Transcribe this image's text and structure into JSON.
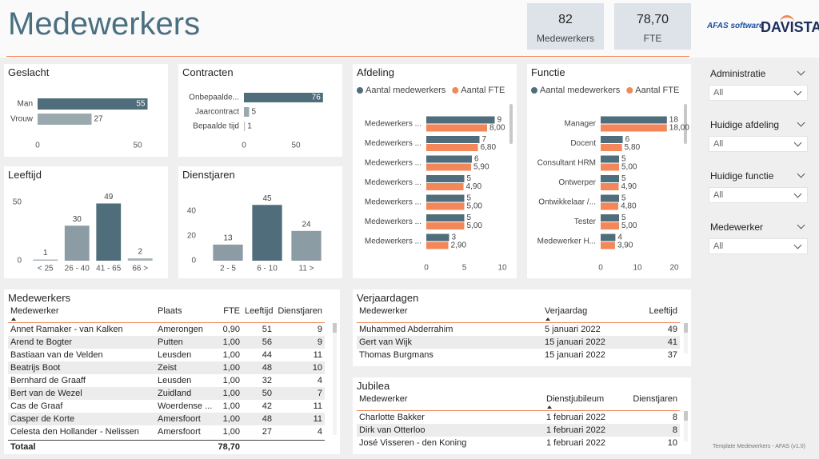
{
  "header": {
    "title": "Medewerkers"
  },
  "kpis": [
    {
      "value": "82",
      "label": "Medewerkers"
    },
    {
      "value": "78,70",
      "label": "FTE"
    }
  ],
  "logos": [
    "AFAS software",
    "DAVISTA"
  ],
  "chart_data": [
    {
      "type": "hbar",
      "title": "Geslacht",
      "categories": [
        "Man",
        "Vrouw"
      ],
      "values": [
        55,
        27
      ],
      "colors": [
        "#4f6d7a",
        "#9aa9ae"
      ],
      "xlim": [
        0,
        60
      ],
      "xticks": [
        0,
        50
      ]
    },
    {
      "type": "hbar",
      "title": "Contracten",
      "categories": [
        "Onbepaalde...",
        "Jaarcontract",
        "Bepaalde tijd"
      ],
      "values": [
        76,
        5,
        1
      ],
      "colors": [
        "#4f6d7a",
        "#9aa9ae",
        "#b9c3c7"
      ],
      "xlim": [
        0,
        80
      ],
      "xticks": [
        0,
        50
      ]
    },
    {
      "type": "vbar",
      "title": "Leeftijd",
      "categories": [
        "< 25",
        "26 - 40",
        "41 - 65",
        "66 >"
      ],
      "values": [
        1,
        30,
        49,
        2
      ],
      "colors": [
        "#a9b5ba",
        "#8b9ca4",
        "#4f6d7a",
        "#a9b5ba"
      ],
      "ylim": [
        0,
        55
      ],
      "yticks": [
        0,
        50
      ]
    },
    {
      "type": "vbar",
      "title": "Dienstjaren",
      "categories": [
        "2 - 5",
        "6 - 10",
        "11 >"
      ],
      "values": [
        13,
        45,
        24
      ],
      "colors": [
        "#8b9ca4",
        "#4f6d7a",
        "#8b9ca4"
      ],
      "ylim": [
        0,
        50
      ],
      "yticks": [
        0,
        20,
        40
      ]
    },
    {
      "type": "hbar",
      "title": "Afdeling",
      "categories": [
        "Medewerkers ...",
        "Medewerkers ...",
        "Medewerkers ...",
        "Medewerkers ...",
        "Medewerkers ...",
        "Medewerkers ...",
        "Medewerkers ..."
      ],
      "series": [
        {
          "name": "Aantal medewerkers",
          "color": "#4f6d7a",
          "values": [
            9,
            7,
            6,
            5,
            5,
            5,
            3
          ]
        },
        {
          "name": "Aantal FTE",
          "color": "#f4875a",
          "values": [
            8,
            6.8,
            5.9,
            4.9,
            5,
            5,
            2.9
          ],
          "value_labels": [
            "8,00",
            "6,80",
            "5,90",
            "4,90",
            "5,00",
            "5,00",
            "2,90"
          ]
        }
      ],
      "xlim": [
        0,
        10
      ],
      "xticks": [
        0,
        5,
        10
      ],
      "legend": "top-left"
    },
    {
      "type": "hbar",
      "title": "Functie",
      "categories": [
        "Manager",
        "Docent",
        "Consultant HRM",
        "Ontwerper",
        "Ontwikkelaar /...",
        "Tester",
        "Medewerker H..."
      ],
      "series": [
        {
          "name": "Aantal medewerkers",
          "color": "#4f6d7a",
          "values": [
            18,
            6,
            5,
            5,
            5,
            5,
            4
          ]
        },
        {
          "name": "Aantal FTE",
          "color": "#f4875a",
          "values": [
            18,
            5.8,
            5,
            4.9,
            4.8,
            5,
            3.9
          ],
          "value_labels": [
            "18,00",
            "5,80",
            "5,00",
            "4,90",
            "4,80",
            "5,00",
            "3,90"
          ]
        }
      ],
      "xlim": [
        0,
        20
      ],
      "xticks": [
        0,
        10,
        20
      ],
      "legend": "top-left"
    }
  ],
  "slicers": [
    {
      "label": "Administratie",
      "value": "All"
    },
    {
      "label": "Huidige afdeling",
      "value": "All"
    },
    {
      "label": "Huidige functie",
      "value": "All"
    },
    {
      "label": "Medewerker",
      "value": "All"
    }
  ],
  "tables": [
    {
      "title": "Medewerkers",
      "columns": [
        "Medewerker",
        "Plaats",
        "FTE",
        "Leeftijd",
        "Dienstjaren"
      ],
      "rows": [
        [
          "Annet Ramaker - van Kalken",
          "Amerongen",
          "0,90",
          51,
          9
        ],
        [
          "Arend te Bogter",
          "Putten",
          "1,00",
          56,
          9
        ],
        [
          "Bastiaan van de Velden",
          "Leusden",
          "1,00",
          44,
          11
        ],
        [
          "Beatrijs Boot",
          "Zeist",
          "1,00",
          48,
          10
        ],
        [
          "Bernhard de Graaff",
          "Leusden",
          "1,00",
          32,
          4
        ],
        [
          "Bert van de Wezel",
          "Zuidland",
          "1,00",
          50,
          7
        ],
        [
          "Cas de Graaf",
          "Woerdense ...",
          "1,00",
          42,
          11
        ],
        [
          "Casper de Korte",
          "Amersfoort",
          "1,00",
          48,
          11
        ],
        [
          "Celesta den Hollander - Nelissen",
          "Amersfoort",
          "1,00",
          27,
          4
        ]
      ],
      "total": [
        "Totaal",
        "78,70"
      ]
    },
    {
      "title": "Verjaardagen",
      "columns": [
        "Medewerker",
        "Verjaardag",
        "Leeftijd"
      ],
      "rows": [
        [
          "Muhammed Abderrahim",
          "5 januari 2022",
          49
        ],
        [
          "Gert van Wijk",
          "15 januari 2022",
          41
        ],
        [
          "Thomas Burgmans",
          "15 januari 2022",
          37
        ]
      ]
    },
    {
      "title": "Jubilea",
      "columns": [
        "Medewerker",
        "Dienstjubileum",
        "Dienstjaren"
      ],
      "rows": [
        [
          "Charlotte Bakker",
          "1 februari 2022",
          8
        ],
        [
          "Dirk van Otterloo",
          "1 februari 2022",
          8
        ],
        [
          "José Visseren - den Koning",
          "1 februari 2022",
          10
        ]
      ]
    }
  ],
  "footer": "Template Medewerkers - AFAS (v1.0)"
}
